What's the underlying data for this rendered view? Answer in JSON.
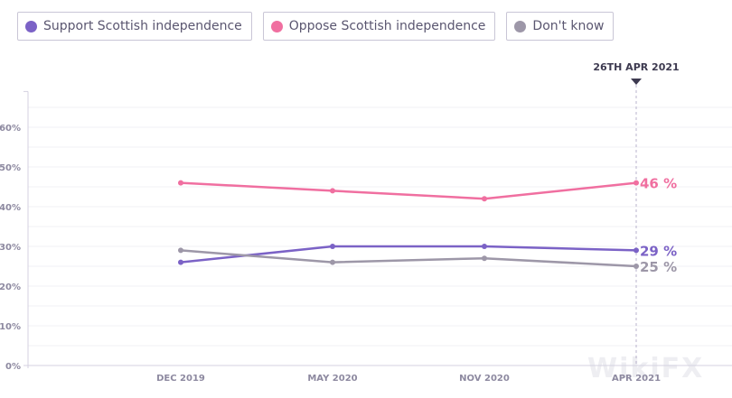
{
  "legend": [
    {
      "label": "Support Scottish independence",
      "color": "#7b62c6"
    },
    {
      "label": "Oppose Scottish independence",
      "color": "#f06fa0"
    },
    {
      "label": "Don't know",
      "color": "#9d97a8"
    }
  ],
  "highlight": {
    "label": "26TH APR 2021",
    "marker_icon": "triangle-down-icon"
  },
  "watermark": "WikiFX",
  "chart_data": {
    "type": "line",
    "title": "",
    "xlabel": "",
    "ylabel": "",
    "categories": [
      "DEC 2019",
      "MAY 2020",
      "NOV 2020",
      "APR 2021"
    ],
    "yticks": [
      "0%",
      "10%",
      "20%",
      "30%",
      "40%",
      "50%",
      "60%"
    ],
    "ylim": [
      0,
      69
    ],
    "grid": true,
    "gridline_step": 5,
    "legend_position": "top-left",
    "series": [
      {
        "name": "Support Scottish independence",
        "color": "#7b62c6",
        "values": [
          26,
          30,
          30,
          29
        ],
        "end_label": "29 %"
      },
      {
        "name": "Oppose Scottish independence",
        "color": "#f06fa0",
        "values": [
          46,
          44,
          42,
          46
        ],
        "end_label": "46 %"
      },
      {
        "name": "Don't know",
        "color": "#9d97a8",
        "values": [
          29,
          26,
          27,
          25
        ],
        "end_label": "25 %"
      }
    ]
  }
}
